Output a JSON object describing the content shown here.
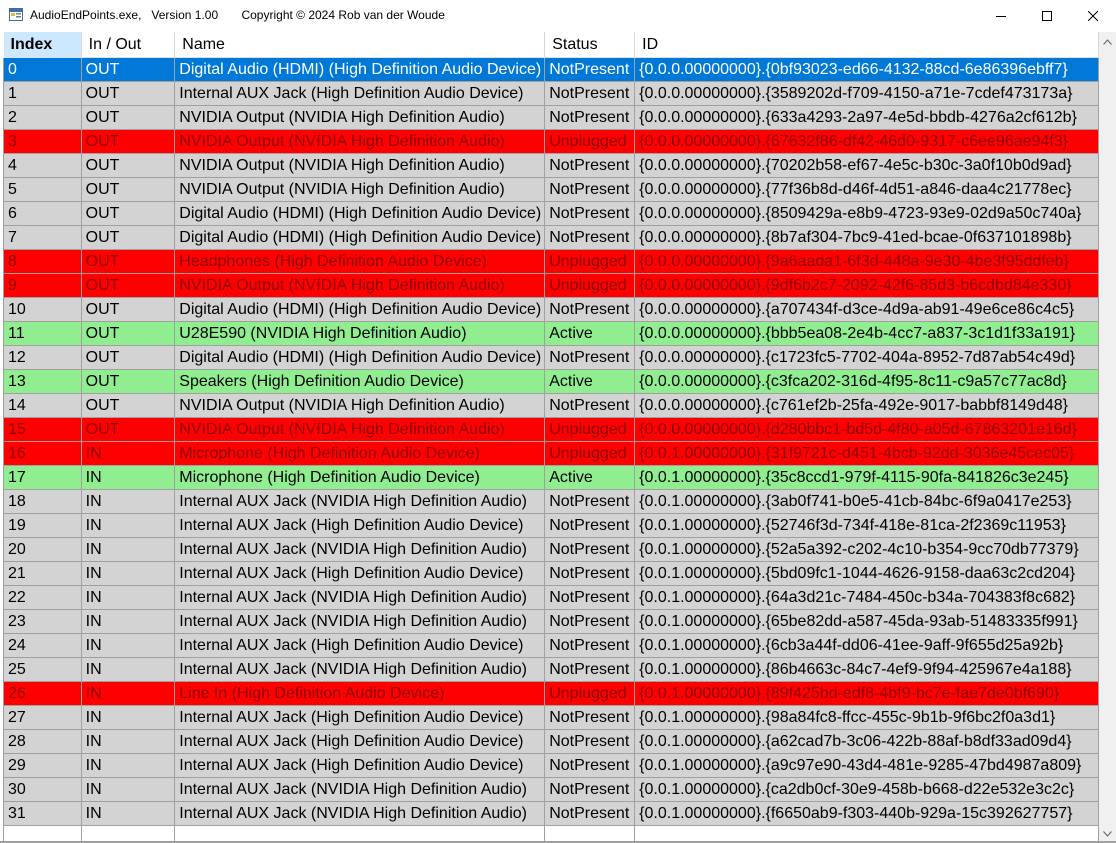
{
  "window": {
    "title": "AudioEndPoints.exe,   Version 1.00       Copyright © 2024 Rob van der Woude",
    "icons": {
      "app": "app-window-icon",
      "minimize": "minimize-icon",
      "maximize": "maximize-icon",
      "close": "close-icon"
    }
  },
  "grid": {
    "columns": [
      "Index",
      "In / Out",
      "Name",
      "Status",
      "ID"
    ],
    "selected_row": 0,
    "colors": {
      "NotPresent": "#d3d3d3",
      "Unplugged": "#ff0000",
      "Active": "#90ee90",
      "Selected": "#0078d7"
    },
    "rows": [
      [
        "0",
        "OUT",
        "Digital Audio (HDMI) (High Definition Audio Device)",
        "NotPresent",
        "{0.0.0.00000000}.{0bf93023-ed66-4132-88cd-6e86396ebff7}"
      ],
      [
        "1",
        "OUT",
        "Internal AUX Jack (High Definition Audio Device)",
        "NotPresent",
        "{0.0.0.00000000}.{3589202d-f709-4150-a71e-7cdef473173a}"
      ],
      [
        "2",
        "OUT",
        "NVIDIA Output (NVIDIA High Definition Audio)",
        "NotPresent",
        "{0.0.0.00000000}.{633a4293-2a97-4e5d-bbdb-4276a2cf612b}"
      ],
      [
        "3",
        "OUT",
        "NVIDIA Output (NVIDIA High Definition Audio)",
        "Unplugged",
        "{0.0.0.00000000}.{67632f86-df42-46d0-9317-c6ee96ae94f3}"
      ],
      [
        "4",
        "OUT",
        "NVIDIA Output (NVIDIA High Definition Audio)",
        "NotPresent",
        "{0.0.0.00000000}.{70202b58-ef67-4e5c-b30c-3a0f10b0d9ad}"
      ],
      [
        "5",
        "OUT",
        "NVIDIA Output (NVIDIA High Definition Audio)",
        "NotPresent",
        "{0.0.0.00000000}.{77f36b8d-d46f-4d51-a846-daa4c21778ec}"
      ],
      [
        "6",
        "OUT",
        "Digital Audio (HDMI) (High Definition Audio Device)",
        "NotPresent",
        "{0.0.0.00000000}.{8509429a-e8b9-4723-93e9-02d9a50c740a}"
      ],
      [
        "7",
        "OUT",
        "Digital Audio (HDMI) (High Definition Audio Device)",
        "NotPresent",
        "{0.0.0.00000000}.{8b7af304-7bc9-41ed-bcae-0f637101898b}"
      ],
      [
        "8",
        "OUT",
        "Headphones (High Definition Audio Device)",
        "Unplugged",
        "{0.0.0.00000000}.{9a6aada1-6f3d-448a-9e30-4be3f95ddfeb}"
      ],
      [
        "9",
        "OUT",
        "NVIDIA Output (NVIDIA High Definition Audio)",
        "Unplugged",
        "{0.0.0.00000000}.{9df6b2c7-2092-42f6-85d3-b6cdbd84e330}"
      ],
      [
        "10",
        "OUT",
        "Digital Audio (HDMI) (High Definition Audio Device)",
        "NotPresent",
        "{0.0.0.00000000}.{a707434f-d3ce-4d9a-ab91-49e6ce86c4c5}"
      ],
      [
        "11",
        "OUT",
        "U28E590 (NVIDIA High Definition Audio)",
        "Active",
        "{0.0.0.00000000}.{bbb5ea08-2e4b-4cc7-a837-3c1d1f33a191}"
      ],
      [
        "12",
        "OUT",
        "Digital Audio (HDMI) (High Definition Audio Device)",
        "NotPresent",
        "{0.0.0.00000000}.{c1723fc5-7702-404a-8952-7d87ab54c49d}"
      ],
      [
        "13",
        "OUT",
        "Speakers (High Definition Audio Device)",
        "Active",
        "{0.0.0.00000000}.{c3fca202-316d-4f95-8c11-c9a57c77ac8d}"
      ],
      [
        "14",
        "OUT",
        "NVIDIA Output (NVIDIA High Definition Audio)",
        "NotPresent",
        "{0.0.0.00000000}.{c761ef2b-25fa-492e-9017-babbf8149d48}"
      ],
      [
        "15",
        "OUT",
        "NVIDIA Output (NVIDIA High Definition Audio)",
        "Unplugged",
        "{0.0.0.00000000}.{d280bbc1-bd5d-4f80-a05d-67863201e16d}"
      ],
      [
        "16",
        "IN",
        "Microphone (High Definition Audio Device)",
        "Unplugged",
        "{0.0.1.00000000}.{31f9721c-d451-4bcb-92dd-3036e45cec05}"
      ],
      [
        "17",
        "IN",
        "Microphone (High Definition Audio Device)",
        "Active",
        "{0.0.1.00000000}.{35c8ccd1-979f-4115-90fa-841826c3e245}"
      ],
      [
        "18",
        "IN",
        "Internal AUX Jack (NVIDIA High Definition Audio)",
        "NotPresent",
        "{0.0.1.00000000}.{3ab0f741-b0e5-41cb-84bc-6f9a0417e253}"
      ],
      [
        "19",
        "IN",
        "Internal AUX Jack (High Definition Audio Device)",
        "NotPresent",
        "{0.0.1.00000000}.{52746f3d-734f-418e-81ca-2f2369c11953}"
      ],
      [
        "20",
        "IN",
        "Internal AUX Jack (NVIDIA High Definition Audio)",
        "NotPresent",
        "{0.0.1.00000000}.{52a5a392-c202-4c10-b354-9cc70db77379}"
      ],
      [
        "21",
        "IN",
        "Internal AUX Jack (High Definition Audio Device)",
        "NotPresent",
        "{0.0.1.00000000}.{5bd09fc1-1044-4626-9158-daa63c2cd204}"
      ],
      [
        "22",
        "IN",
        "Internal AUX Jack (NVIDIA High Definition Audio)",
        "NotPresent",
        "{0.0.1.00000000}.{64a3d21c-7484-450c-b34a-704383f8c682}"
      ],
      [
        "23",
        "IN",
        "Internal AUX Jack (NVIDIA High Definition Audio)",
        "NotPresent",
        "{0.0.1.00000000}.{65be82dd-a587-45da-93ab-51483335f991}"
      ],
      [
        "24",
        "IN",
        "Internal AUX Jack (High Definition Audio Device)",
        "NotPresent",
        "{0.0.1.00000000}.{6cb3a44f-dd06-41ee-9aff-9f655d25a92b}"
      ],
      [
        "25",
        "IN",
        "Internal AUX Jack (NVIDIA High Definition Audio)",
        "NotPresent",
        "{0.0.1.00000000}.{86b4663c-84c7-4ef9-9f94-425967e4a188}"
      ],
      [
        "26",
        "IN",
        "Line In (High Definition Audio Device)",
        "Unplugged",
        "{0.0.1.00000000}.{89f425bd-edf8-4bf9-bc7e-fae7de0bf690}"
      ],
      [
        "27",
        "IN",
        "Internal AUX Jack (High Definition Audio Device)",
        "NotPresent",
        "{0.0.1.00000000}.{98a84fc8-ffcc-455c-9b1b-9f6bc2f0a3d1}"
      ],
      [
        "28",
        "IN",
        "Internal AUX Jack (High Definition Audio Device)",
        "NotPresent",
        "{0.0.1.00000000}.{a62cad7b-3c06-422b-88af-b8df33ad09d4}"
      ],
      [
        "29",
        "IN",
        "Internal AUX Jack (High Definition Audio Device)",
        "NotPresent",
        "{0.0.1.00000000}.{a9c97e90-43d4-481e-9285-47bd4987a809}"
      ],
      [
        "30",
        "IN",
        "Internal AUX Jack (NVIDIA High Definition Audio)",
        "NotPresent",
        "{0.0.1.00000000}.{ca2db0cf-30e9-458b-b668-d22e532e3c2c}"
      ],
      [
        "31",
        "IN",
        "Internal AUX Jack (NVIDIA High Definition Audio)",
        "NotPresent",
        "{0.0.1.00000000}.{f6650ab9-f303-440b-929a-15c392627757}"
      ]
    ]
  },
  "scrollbar": {
    "icons": {
      "up": "scroll-up-arrow-icon",
      "down": "scroll-down-arrow-icon"
    }
  }
}
